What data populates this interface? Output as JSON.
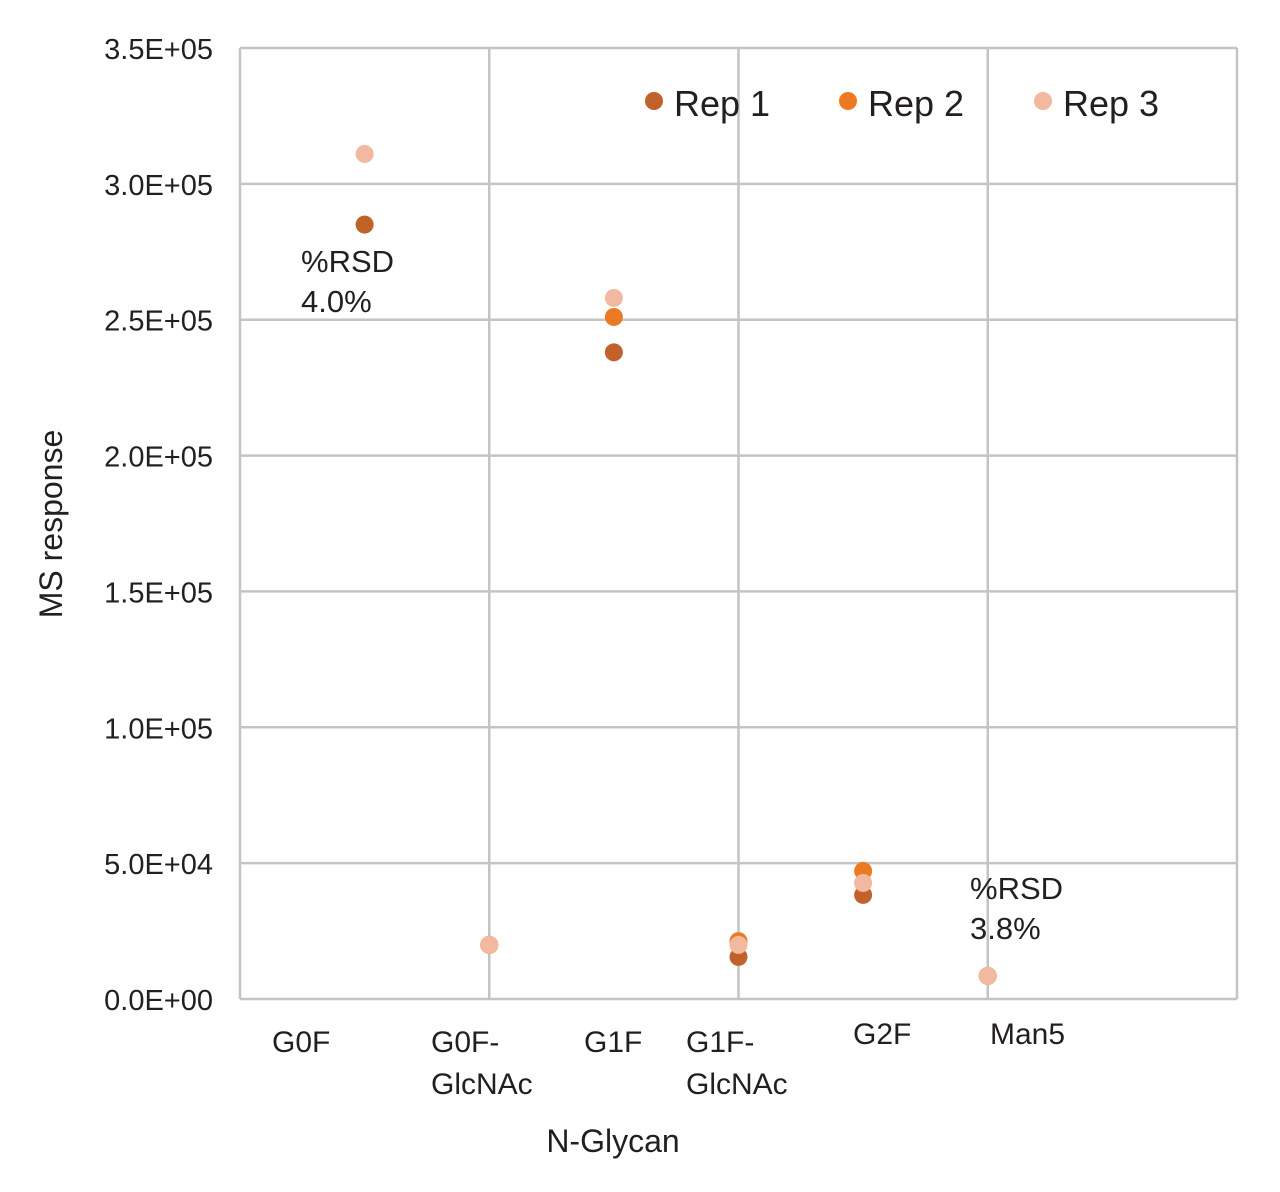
{
  "chart_data": {
    "type": "scatter",
    "title": "",
    "xlabel": "N-Glycan",
    "ylabel": "MS response",
    "xlim": [
      0,
      8
    ],
    "ylim": [
      0,
      350000
    ],
    "y_ticks": [
      0,
      50000,
      100000,
      150000,
      200000,
      250000,
      300000,
      350000
    ],
    "y_tick_labels": [
      "0.0E+00",
      "5.0E+04",
      "1.0E+05",
      "1.5E+05",
      "2.0E+05",
      "2.5E+05",
      "3.0E+05",
      "3.5E+05"
    ],
    "x_gridlines": [
      0,
      2,
      4,
      6,
      8
    ],
    "grid": true,
    "legend_position": "top-right",
    "categories": [
      "G0F",
      "G0F-GlcNAc",
      "G1F",
      "G1F-GlcNAc",
      "G2F",
      "Man5"
    ],
    "category_labels": [
      [
        "G0F"
      ],
      [
        "G0F-",
        "GlcNAc"
      ],
      [
        "G1F"
      ],
      [
        "G1F-",
        "GlcNAc"
      ],
      [
        "G2F"
      ],
      [
        "Man5"
      ]
    ],
    "x": [
      1,
      2,
      3,
      4,
      5,
      6
    ],
    "series": [
      {
        "name": "Rep 1",
        "color": "#c0622a",
        "values": [
          285000,
          19900,
          238000,
          15500,
          38300,
          8500
        ]
      },
      {
        "name": "Rep 2",
        "color": "#ec7a22",
        "values": [
          null,
          19900,
          251000,
          21300,
          47100,
          8500
        ]
      },
      {
        "name": "Rep 3",
        "color": "#f2b8a0",
        "values": [
          311000,
          19900,
          258000,
          19900,
          42700,
          8500
        ]
      }
    ],
    "annotations": [
      {
        "lines": [
          "%RSD",
          "4.0%"
        ],
        "category": "G0F"
      },
      {
        "lines": [
          "%RSD",
          "3.8%"
        ],
        "category": "Man5"
      }
    ]
  }
}
